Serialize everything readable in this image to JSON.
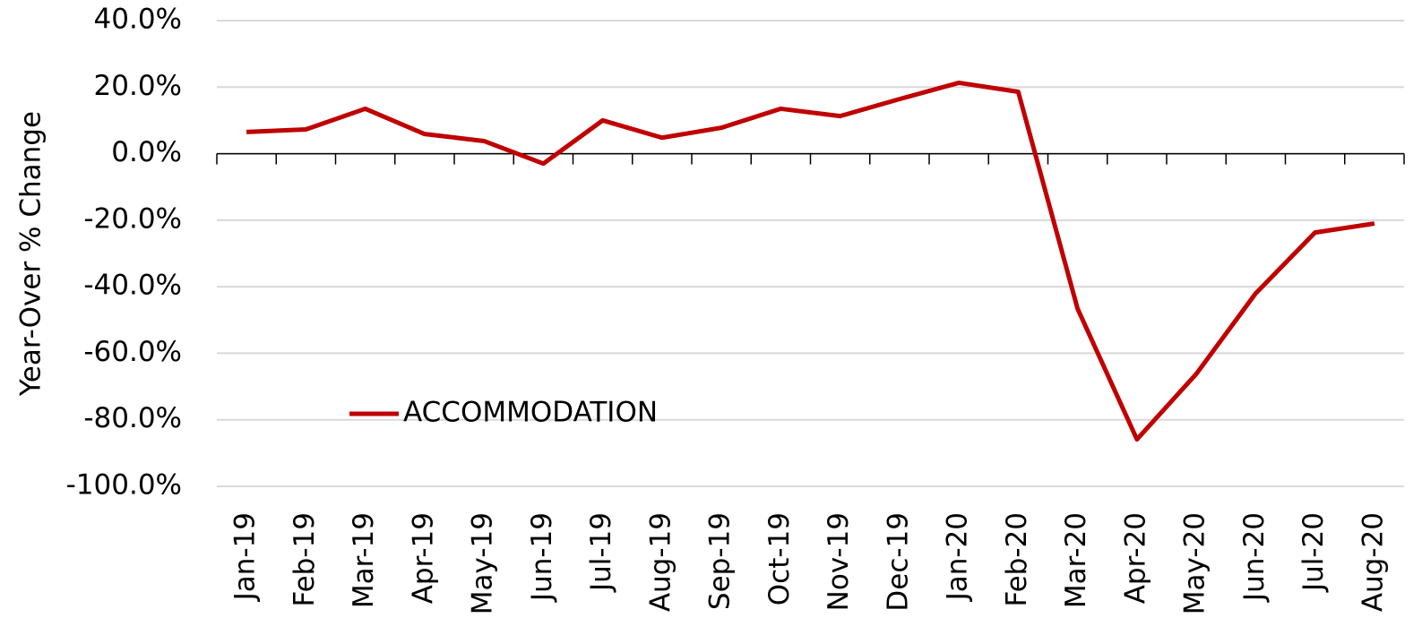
{
  "chart_data": {
    "type": "line",
    "y_label": "Year-Over % Change",
    "categories": [
      "Jan-19",
      "Feb-19",
      "Mar-19",
      "Apr-19",
      "May-19",
      "Jun-19",
      "Jul-19",
      "Aug-19",
      "Sep-19",
      "Oct-19",
      "Nov-19",
      "Dec-19",
      "Jan-20",
      "Feb-20",
      "Mar-20",
      "Apr-20",
      "May-20",
      "Jun-20",
      "Jul-20",
      "Aug-20"
    ],
    "series": [
      {
        "name": "ACCOMMODATION",
        "color": "#c00000",
        "values": [
          6.5,
          7.3,
          13.5,
          5.9,
          3.8,
          -3.0,
          10.0,
          4.8,
          7.8,
          13.5,
          11.3,
          16.4,
          21.3,
          18.6,
          -46.6,
          -85.9,
          -66.2,
          -42.0,
          -23.7,
          -21.0
        ]
      }
    ],
    "ylim": [
      -100,
      40
    ],
    "yticks": [
      {
        "value": -100,
        "label": "-100.0%"
      },
      {
        "value": -80,
        "label": "-80.0%"
      },
      {
        "value": -60,
        "label": "-60.0%"
      },
      {
        "value": -40,
        "label": "-40.0%"
      },
      {
        "value": -20,
        "label": "-20.0%"
      },
      {
        "value": 0,
        "label": "0.0%"
      },
      {
        "value": 20,
        "label": "20.0%"
      },
      {
        "value": 40,
        "label": "40.0%"
      }
    ],
    "grid": true
  }
}
